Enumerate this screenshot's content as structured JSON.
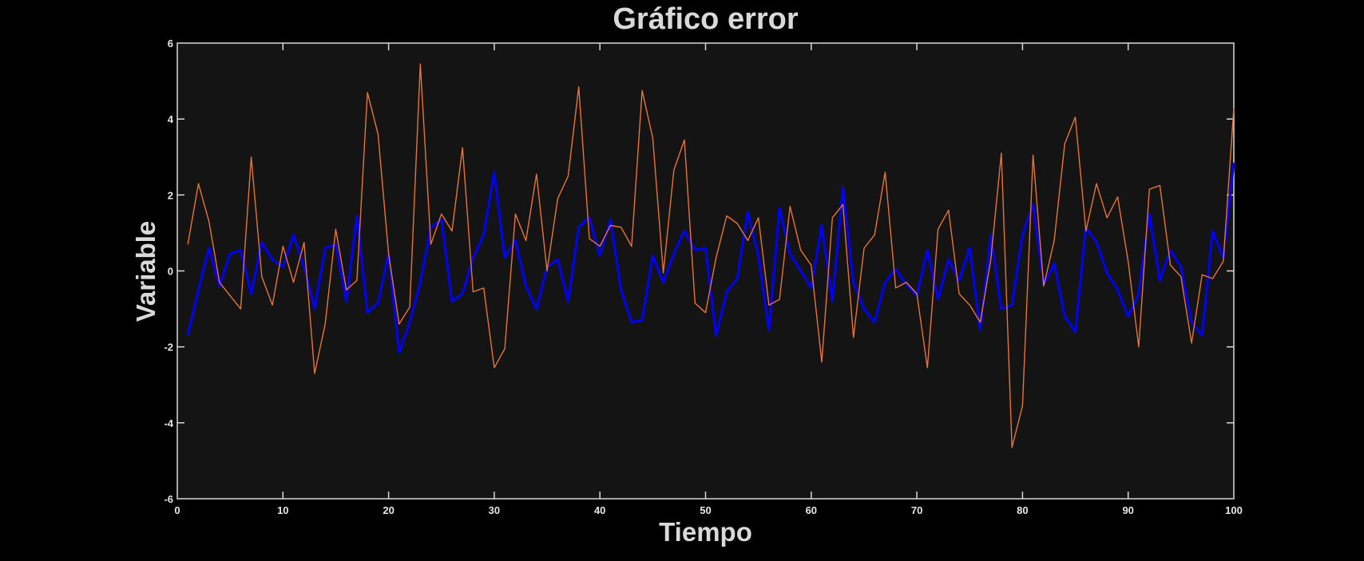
{
  "chart_data": {
    "type": "line",
    "title": "Gráfico error",
    "xlabel": "Tiempo",
    "ylabel": "Variable",
    "xlim": [
      0,
      100
    ],
    "ylim": [
      -6,
      6
    ],
    "xticks": [
      0,
      10,
      20,
      30,
      40,
      50,
      60,
      70,
      80,
      90,
      100
    ],
    "yticks": [
      -6,
      -4,
      -2,
      0,
      2,
      4,
      6
    ],
    "grid": false,
    "colors": {
      "background": "#000000",
      "plot_area": "#141414",
      "axes": "#d9d9d9",
      "text": "#d9d9d9"
    },
    "x": [
      1,
      2,
      3,
      4,
      5,
      6,
      7,
      8,
      9,
      10,
      11,
      12,
      13,
      14,
      15,
      16,
      17,
      18,
      19,
      20,
      21,
      22,
      23,
      24,
      25,
      26,
      27,
      28,
      29,
      30,
      31,
      32,
      33,
      34,
      35,
      36,
      37,
      38,
      39,
      40,
      41,
      42,
      43,
      44,
      45,
      46,
      47,
      48,
      49,
      50,
      51,
      52,
      53,
      54,
      55,
      56,
      57,
      58,
      59,
      60,
      61,
      62,
      63,
      64,
      65,
      66,
      67,
      68,
      69,
      70,
      71,
      72,
      73,
      74,
      75,
      76,
      77,
      78,
      79,
      80,
      81,
      82,
      83,
      84,
      85,
      86,
      87,
      88,
      89,
      90,
      91,
      92,
      93,
      94,
      95,
      96,
      97,
      98,
      99,
      100
    ],
    "series": [
      {
        "color": "#0000ff",
        "width": 3,
        "values": [
          -1.7,
          -0.5,
          0.6,
          -0.4,
          0.45,
          0.55,
          -0.6,
          0.75,
          0.3,
          0.1,
          0.95,
          0.1,
          -1.0,
          0.6,
          0.7,
          -0.8,
          1.45,
          -1.1,
          -0.85,
          0.45,
          -2.15,
          -1.35,
          -0.3,
          1.15,
          1.35,
          -0.8,
          -0.6,
          0.35,
          0.95,
          2.6,
          0.35,
          0.8,
          -0.4,
          -1.0,
          0.1,
          0.3,
          -0.8,
          1.15,
          1.4,
          0.4,
          1.35,
          -0.5,
          -1.35,
          -1.3,
          0.4,
          -0.3,
          0.45,
          1.05,
          0.55,
          0.6,
          -1.7,
          -0.55,
          -0.2,
          1.55,
          0.4,
          -1.55,
          1.65,
          0.45,
          0.0,
          -0.45,
          1.2,
          -0.8,
          2.2,
          -0.3,
          -1.0,
          -1.35,
          -0.3,
          0.05,
          -0.35,
          -0.65,
          0.55,
          -0.75,
          0.3,
          -0.25,
          0.6,
          -1.55,
          0.95,
          -1.0,
          -0.9,
          0.95,
          1.75,
          -0.35,
          0.2,
          -1.2,
          -1.6,
          1.15,
          0.75,
          -0.05,
          -0.5,
          -1.2,
          -0.6,
          1.5,
          -0.25,
          0.55,
          0.1,
          -1.35,
          -1.7,
          1.05,
          0.35,
          2.85
        ]
      },
      {
        "color": "#e8743b",
        "width": 1.4,
        "values": [
          0.7,
          2.3,
          1.3,
          -0.3,
          -0.65,
          -1.0,
          3.0,
          -0.15,
          -0.9,
          0.65,
          -0.3,
          0.75,
          -2.7,
          -1.4,
          1.1,
          -0.5,
          -0.25,
          4.7,
          3.6,
          0.45,
          -1.4,
          -0.95,
          5.45,
          0.7,
          1.5,
          1.05,
          3.25,
          -0.55,
          -0.45,
          -2.55,
          -2.05,
          1.5,
          0.8,
          2.55,
          0.0,
          1.9,
          2.5,
          4.85,
          0.85,
          0.65,
          1.2,
          1.15,
          0.65,
          4.75,
          3.5,
          -0.05,
          2.65,
          3.45,
          -0.85,
          -1.1,
          0.35,
          1.45,
          1.25,
          0.8,
          1.4,
          -0.9,
          -0.75,
          1.7,
          0.55,
          0.15,
          -2.4,
          1.4,
          1.75,
          -1.75,
          0.6,
          0.95,
          2.6,
          -0.45,
          -0.3,
          -0.6,
          -2.55,
          1.1,
          1.6,
          -0.6,
          -0.9,
          -1.35,
          0.3,
          3.1,
          -4.65,
          -3.55,
          3.05,
          -0.4,
          0.8,
          3.35,
          4.05,
          1.05,
          2.3,
          1.4,
          1.95,
          0.25,
          -2.0,
          2.15,
          2.25,
          0.15,
          -0.15,
          -1.9,
          -0.1,
          -0.2,
          0.25,
          4.3
        ]
      }
    ]
  }
}
